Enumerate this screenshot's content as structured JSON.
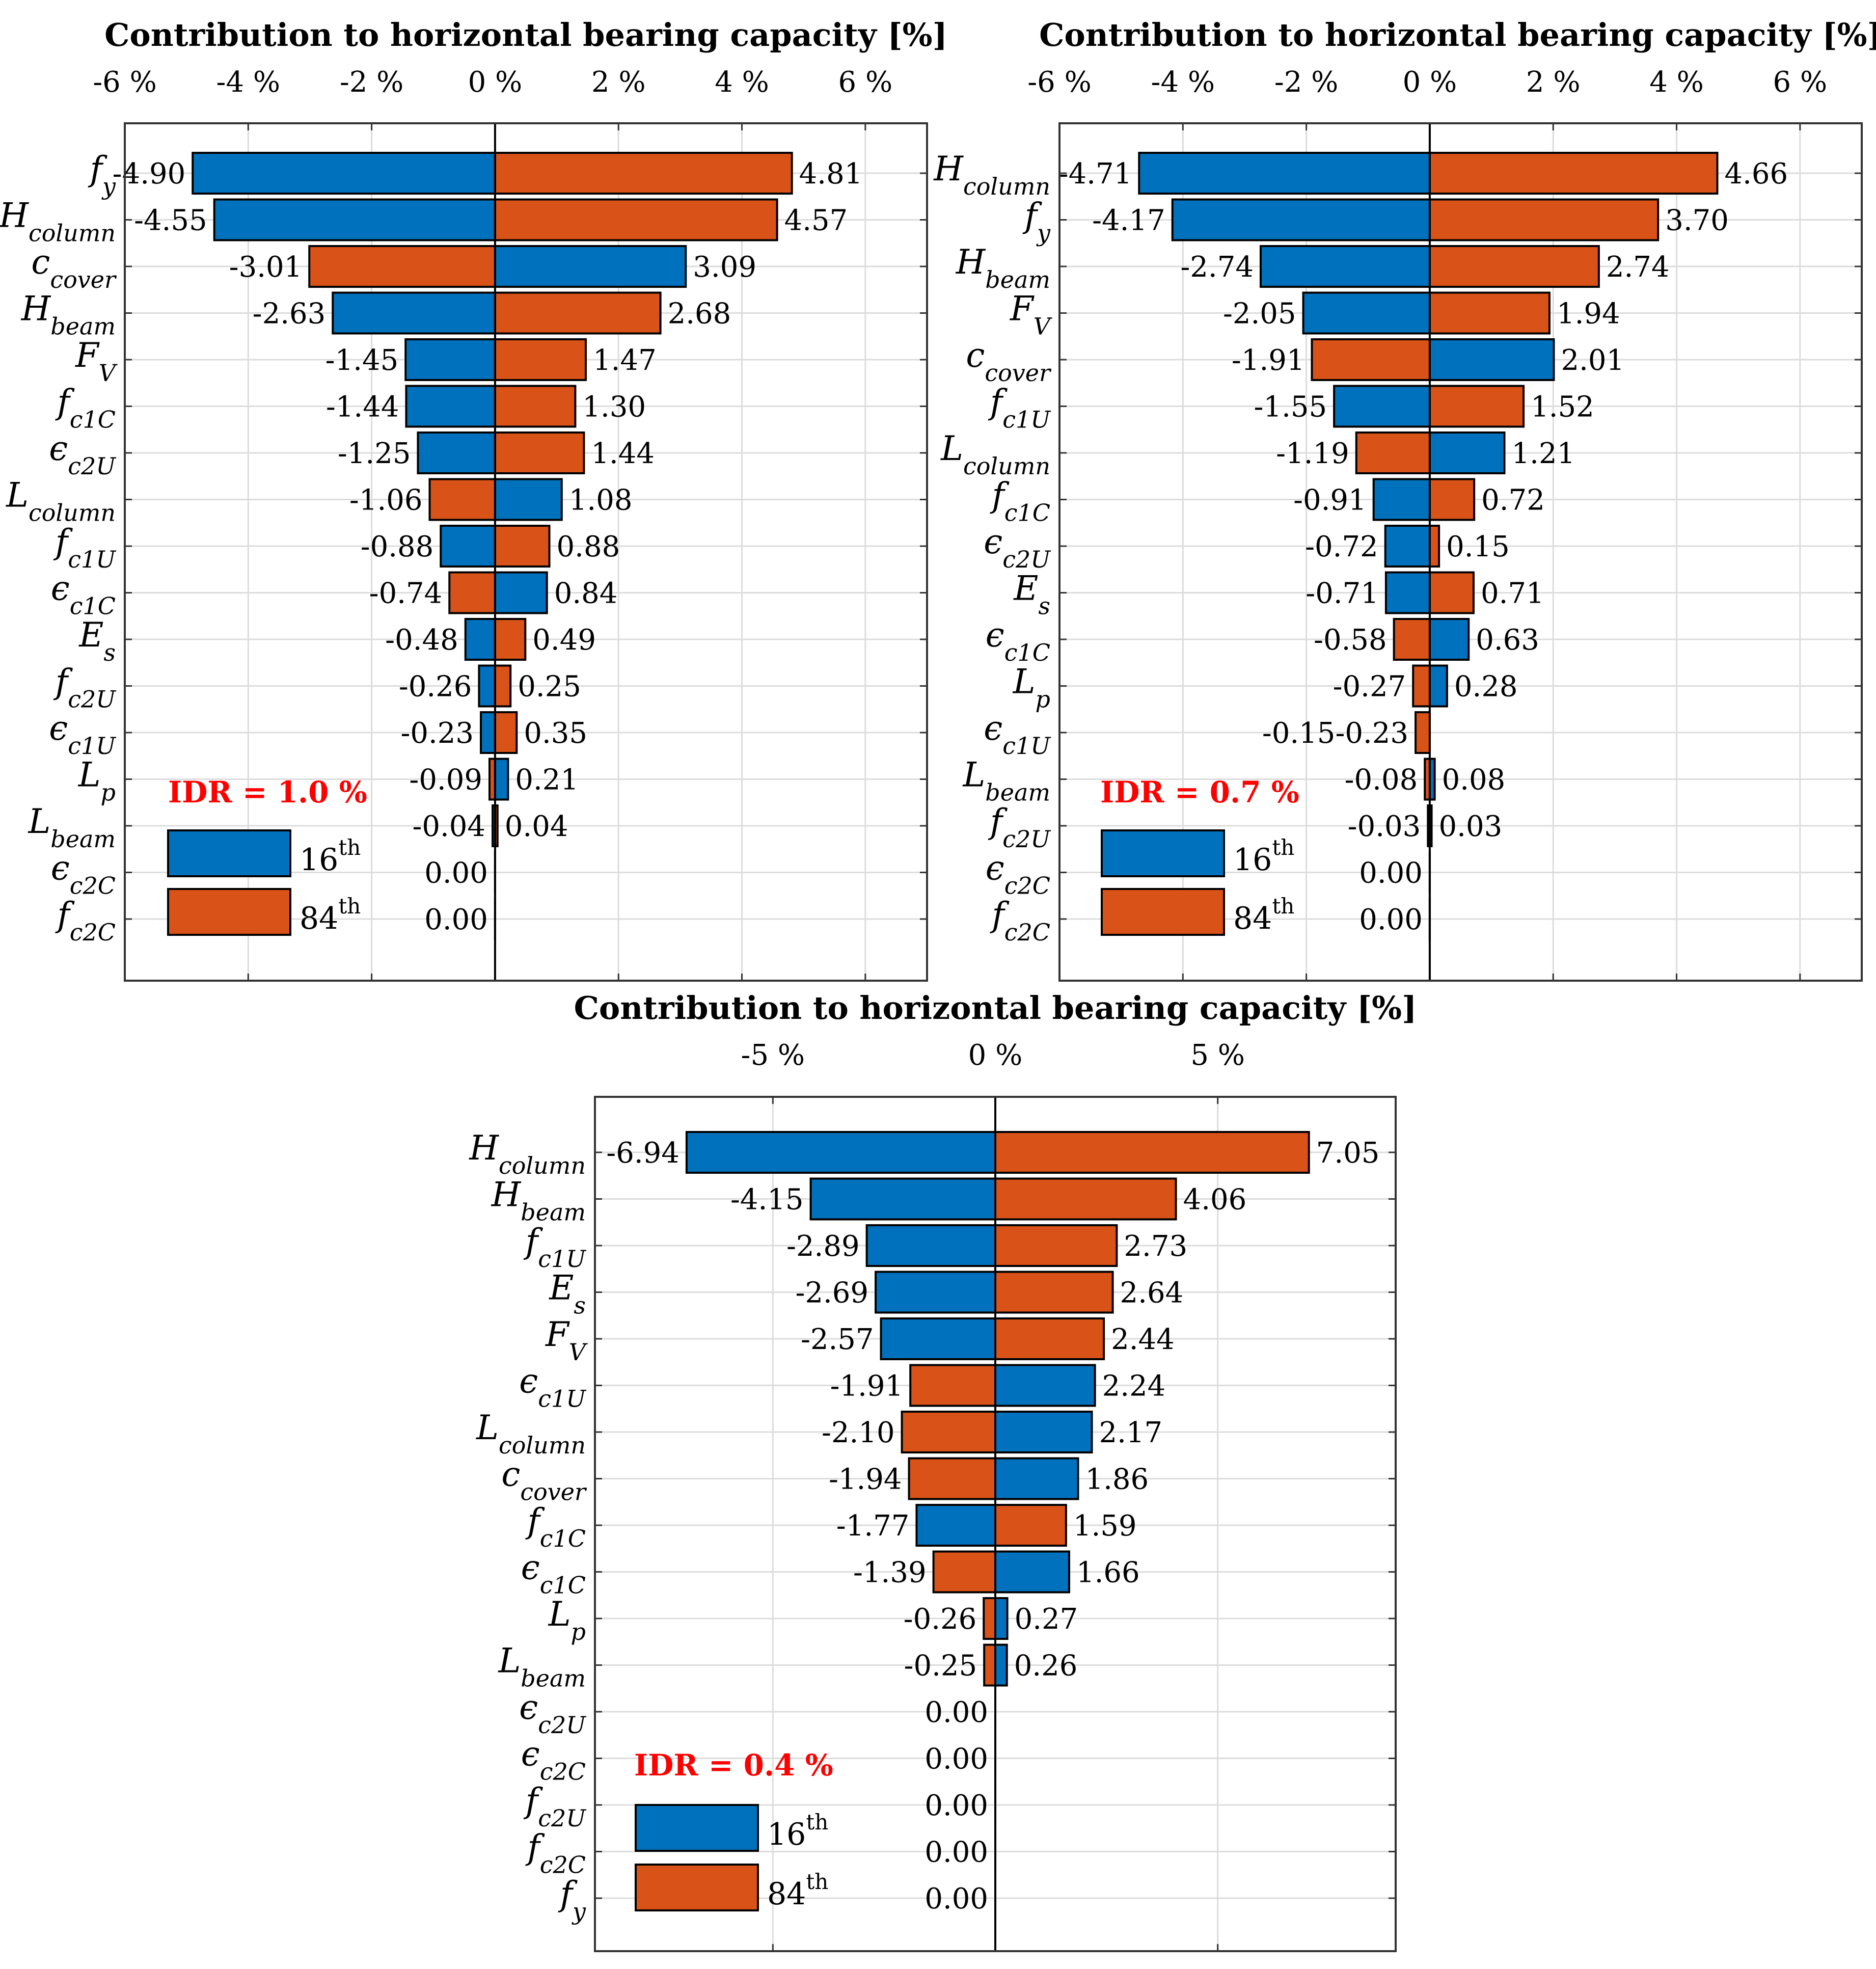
{
  "colors": {
    "p16": "#0072bd",
    "p84": "#d95319",
    "grid": "#dcdcdc",
    "idr": "#ff0000"
  },
  "legend": {
    "p16": {
      "base": "16",
      "sup": "th"
    },
    "p84": {
      "base": "84",
      "sup": "th"
    }
  },
  "chart_data": [
    {
      "type": "bar",
      "orientation": "horizontal",
      "title": "Contribution to horizontal bearing capacity [%]",
      "annotation": "IDR = 1.0 %",
      "xlim": [
        -6,
        7
      ],
      "xticks": [
        -6,
        -4,
        -2,
        0,
        2,
        4,
        6
      ],
      "xtick_labels": [
        "-6 %",
        "-4 %",
        "-2 %",
        "0 %",
        "2 %",
        "4 %",
        "6 %"
      ],
      "xaxis_position": "top",
      "grid": true,
      "legend": "bottom-left",
      "categories": [
        {
          "base": "f",
          "sub": "y"
        },
        {
          "base": "H",
          "sub": "column"
        },
        {
          "base": "c",
          "sub": "cover"
        },
        {
          "base": "H",
          "sub": "beam"
        },
        {
          "base": "F",
          "sub": "V"
        },
        {
          "base": "f",
          "sub": "c1C"
        },
        {
          "base": "ϵ",
          "sub": "c2U"
        },
        {
          "base": "L",
          "sub": "column"
        },
        {
          "base": "f",
          "sub": "c1U"
        },
        {
          "base": "ϵ",
          "sub": "c1C"
        },
        {
          "base": "E",
          "sub": "s"
        },
        {
          "base": "f",
          "sub": "c2U"
        },
        {
          "base": "ϵ",
          "sub": "c1U"
        },
        {
          "base": "L",
          "sub": "p"
        },
        {
          "base": "L",
          "sub": "beam"
        },
        {
          "base": "ϵ",
          "sub": "c2C"
        },
        {
          "base": "f",
          "sub": "c2C"
        }
      ],
      "series": [
        {
          "name": "16th",
          "values": [
            -4.9,
            -4.55,
            3.09,
            -2.63,
            -1.45,
            -1.44,
            -1.25,
            1.08,
            -0.88,
            0.84,
            -0.48,
            -0.26,
            -0.23,
            0.21,
            -0.04,
            0.0,
            0.0
          ]
        },
        {
          "name": "84th",
          "values": [
            4.81,
            4.57,
            -3.01,
            2.68,
            1.47,
            1.3,
            1.44,
            -1.06,
            0.88,
            -0.74,
            0.49,
            0.25,
            0.35,
            -0.09,
            0.04,
            0.0,
            0.0
          ]
        }
      ],
      "labels": [
        {
          "neg": "-4.90",
          "pos": "4.81"
        },
        {
          "neg": "-4.55",
          "pos": "4.57"
        },
        {
          "neg": "-3.01",
          "pos": "3.09"
        },
        {
          "neg": "-2.63",
          "pos": "2.68"
        },
        {
          "neg": "-1.45",
          "pos": "1.47"
        },
        {
          "neg": "-1.44",
          "pos": "1.30"
        },
        {
          "neg": "-1.25",
          "pos": "1.44"
        },
        {
          "neg": "-1.06",
          "pos": "1.08"
        },
        {
          "neg": "-0.88",
          "pos": "0.88"
        },
        {
          "neg": "-0.74",
          "pos": "0.84"
        },
        {
          "neg": "-0.48",
          "pos": "0.49"
        },
        {
          "neg": "-0.26",
          "pos": "0.25"
        },
        {
          "neg": "-0.23",
          "pos": "0.35"
        },
        {
          "neg": "-0.09",
          "pos": "0.21"
        },
        {
          "neg": "-0.04",
          "pos": "0.04"
        },
        {
          "neg": "0.00",
          "pos": ""
        },
        {
          "neg": "0.00",
          "pos": ""
        }
      ]
    },
    {
      "type": "bar",
      "orientation": "horizontal",
      "title": "Contribution to horizontal bearing capacity [%]",
      "annotation": "IDR = 0.7 %",
      "xlim": [
        -6,
        7
      ],
      "xticks": [
        -6,
        -4,
        -2,
        0,
        2,
        4,
        6
      ],
      "xtick_labels": [
        "-6 %",
        "-4 %",
        "-2 %",
        "0 %",
        "2 %",
        "4 %",
        "6 %"
      ],
      "xaxis_position": "top",
      "grid": true,
      "legend": "bottom-left",
      "categories": [
        {
          "base": "H",
          "sub": "column"
        },
        {
          "base": "f",
          "sub": "y"
        },
        {
          "base": "H",
          "sub": "beam"
        },
        {
          "base": "F",
          "sub": "V"
        },
        {
          "base": "c",
          "sub": "cover"
        },
        {
          "base": "f",
          "sub": "c1U"
        },
        {
          "base": "L",
          "sub": "column"
        },
        {
          "base": "f",
          "sub": "c1C"
        },
        {
          "base": "ϵ",
          "sub": "c2U"
        },
        {
          "base": "E",
          "sub": "s"
        },
        {
          "base": "ϵ",
          "sub": "c1C"
        },
        {
          "base": "L",
          "sub": "p"
        },
        {
          "base": "ϵ",
          "sub": "c1U"
        },
        {
          "base": "L",
          "sub": "beam"
        },
        {
          "base": "f",
          "sub": "c2U"
        },
        {
          "base": "ϵ",
          "sub": "c2C"
        },
        {
          "base": "f",
          "sub": "c2C"
        }
      ],
      "series": [
        {
          "name": "16th",
          "values": [
            -4.71,
            -4.17,
            -2.74,
            -2.05,
            2.01,
            -1.55,
            1.21,
            -0.91,
            -0.72,
            -0.71,
            0.63,
            0.28,
            -0.15,
            0.08,
            -0.03,
            0.0,
            0.0
          ]
        },
        {
          "name": "84th",
          "values": [
            4.66,
            3.7,
            2.74,
            1.94,
            -1.91,
            1.52,
            -1.19,
            0.72,
            0.15,
            0.71,
            -0.58,
            -0.27,
            -0.23,
            -0.08,
            0.03,
            0.0,
            0.0
          ]
        }
      ],
      "labels": [
        {
          "neg": "-4.71",
          "pos": "4.66"
        },
        {
          "neg": "-4.17",
          "pos": "3.70"
        },
        {
          "neg": "-2.74",
          "pos": "2.74"
        },
        {
          "neg": "-2.05",
          "pos": "1.94"
        },
        {
          "neg": "-1.91",
          "pos": "2.01"
        },
        {
          "neg": "-1.55",
          "pos": "1.52"
        },
        {
          "neg": "-1.19",
          "pos": "1.21"
        },
        {
          "neg": "-0.91",
          "pos": "0.72"
        },
        {
          "neg": "-0.72",
          "pos": "0.15"
        },
        {
          "neg": "-0.71",
          "pos": "0.71"
        },
        {
          "neg": "-0.58",
          "pos": "0.63"
        },
        {
          "neg": "-0.27",
          "pos": "0.28"
        },
        {
          "neg": "-0.15-0.23",
          "pos": ""
        },
        {
          "neg": "-0.08",
          "pos": "0.08"
        },
        {
          "neg": "-0.03",
          "pos": "0.03"
        },
        {
          "neg": "0.00",
          "pos": ""
        },
        {
          "neg": "0.00",
          "pos": ""
        }
      ]
    },
    {
      "type": "bar",
      "orientation": "horizontal",
      "title": "Contribution to horizontal bearing capacity [%]",
      "annotation": "IDR = 0.4 %",
      "xlim": [
        -9,
        9
      ],
      "xticks": [
        -5,
        0,
        5
      ],
      "xtick_labels": [
        "-5 %",
        "0 %",
        "5 %"
      ],
      "xaxis_position": "top",
      "grid": true,
      "legend": "bottom-left",
      "categories": [
        {
          "base": "H",
          "sub": "column"
        },
        {
          "base": "H",
          "sub": "beam"
        },
        {
          "base": "f",
          "sub": "c1U"
        },
        {
          "base": "E",
          "sub": "s"
        },
        {
          "base": "F",
          "sub": "V"
        },
        {
          "base": "ϵ",
          "sub": "c1U"
        },
        {
          "base": "L",
          "sub": "column"
        },
        {
          "base": "c",
          "sub": "cover"
        },
        {
          "base": "f",
          "sub": "c1C"
        },
        {
          "base": "ϵ",
          "sub": "c1C"
        },
        {
          "base": "L",
          "sub": "p"
        },
        {
          "base": "L",
          "sub": "beam"
        },
        {
          "base": "ϵ",
          "sub": "c2U"
        },
        {
          "base": "ϵ",
          "sub": "c2C"
        },
        {
          "base": "f",
          "sub": "c2U"
        },
        {
          "base": "f",
          "sub": "c2C"
        },
        {
          "base": "f",
          "sub": "y"
        }
      ],
      "series": [
        {
          "name": "16th",
          "values": [
            -6.94,
            -4.15,
            -2.89,
            -2.69,
            -2.57,
            2.24,
            2.17,
            1.86,
            -1.77,
            1.66,
            0.27,
            0.26,
            0.0,
            0.0,
            0.0,
            0.0,
            0.0
          ]
        },
        {
          "name": "84th",
          "values": [
            7.05,
            4.06,
            2.73,
            2.64,
            2.44,
            -1.91,
            -2.1,
            -1.94,
            1.59,
            -1.39,
            -0.26,
            -0.25,
            0.0,
            0.0,
            0.0,
            0.0,
            0.0
          ]
        }
      ],
      "labels": [
        {
          "neg": "-6.94",
          "pos": "7.05"
        },
        {
          "neg": "-4.15",
          "pos": "4.06"
        },
        {
          "neg": "-2.89",
          "pos": "2.73"
        },
        {
          "neg": "-2.69",
          "pos": "2.64"
        },
        {
          "neg": "-2.57",
          "pos": "2.44"
        },
        {
          "neg": "-1.91",
          "pos": "2.24"
        },
        {
          "neg": "-2.10",
          "pos": "2.17"
        },
        {
          "neg": "-1.94",
          "pos": "1.86"
        },
        {
          "neg": "-1.77",
          "pos": "1.59"
        },
        {
          "neg": "-1.39",
          "pos": "1.66"
        },
        {
          "neg": "-0.26",
          "pos": "0.27"
        },
        {
          "neg": "-0.25",
          "pos": "0.26"
        },
        {
          "neg": "0.00",
          "pos": ""
        },
        {
          "neg": "0.00",
          "pos": ""
        },
        {
          "neg": "0.00",
          "pos": ""
        },
        {
          "neg": "0.00",
          "pos": ""
        },
        {
          "neg": "0.00",
          "pos": ""
        }
      ]
    }
  ]
}
